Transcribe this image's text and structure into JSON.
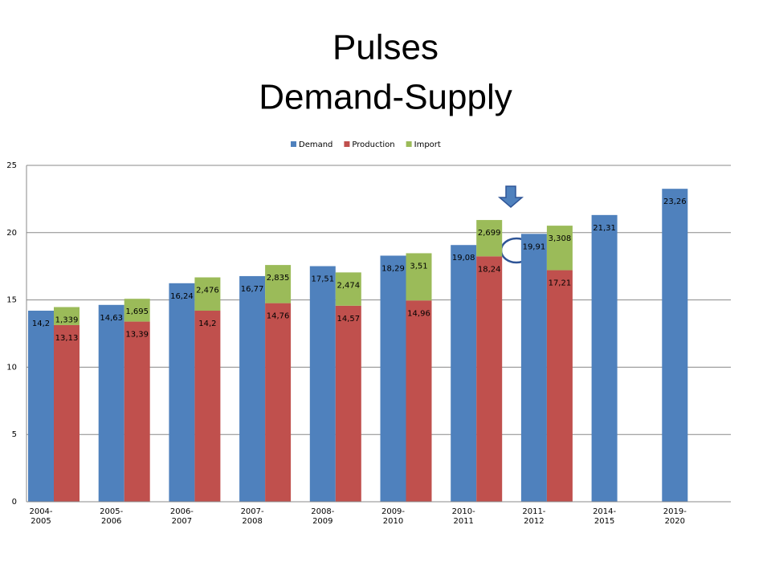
{
  "chart_data": {
    "type": "bar",
    "title": [
      "Pulses",
      "Demand-Supply"
    ],
    "categories": [
      "2004-2005",
      "2005-2006",
      "2006-2007",
      "2007-2008",
      "2008-2009",
      "2009-2010",
      "2010-2011",
      "2011-2012",
      "2014-2015",
      "2019-2020"
    ],
    "series": [
      {
        "name": "Demand",
        "color": "#4f81bd",
        "values": [
          14.2,
          14.63,
          16.24,
          16.77,
          17.51,
          18.29,
          19.08,
          19.91,
          21.31,
          23.26
        ],
        "value_labels": [
          "14,2",
          "14,63",
          "16,24",
          "16,77",
          "17,51",
          "18,29",
          "19,08",
          "19,91",
          "21,31",
          "23,26"
        ]
      },
      {
        "name": "Production",
        "color": "#c0504d",
        "values": [
          13.13,
          13.39,
          14.2,
          14.76,
          14.57,
          14.96,
          18.24,
          17.21,
          null,
          null
        ],
        "value_labels": [
          "13,13",
          "13,39",
          "14,2",
          "14,76",
          "14,57",
          "14,96",
          "18,24",
          "17,21",
          null,
          null
        ]
      },
      {
        "name": "Import",
        "color": "#9bbb59",
        "values": [
          1.339,
          1.695,
          2.476,
          2.835,
          2.474,
          3.51,
          2.699,
          3.308,
          null,
          null
        ],
        "value_labels": [
          "1,339",
          "1,695",
          "2,476",
          "2,835",
          "2,474",
          "3,51",
          "2,699",
          "3,308",
          null,
          null
        ]
      }
    ],
    "ylim": [
      0,
      25
    ],
    "yticks": [
      0,
      5,
      10,
      15,
      20,
      25
    ],
    "grid": true,
    "legend": "top"
  }
}
